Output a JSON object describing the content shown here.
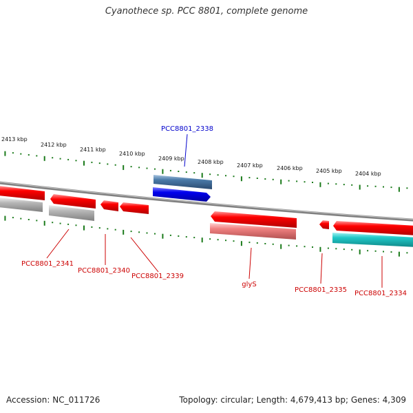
{
  "title": "Cyanothece sp. PCC 8801, complete genome",
  "footer": {
    "accession": "Accession: NC_011726",
    "topology": "Topology: circular; Length: 4,679,413 bp; Genes: 4,309"
  },
  "colors": {
    "backbone": "#808080",
    "tick": "#1a7a1a",
    "gene_red": "#ff0000",
    "gene_blue": "#0000ee",
    "gene_cyan": "#20c8c8",
    "gene_gray": "#b8b8b8",
    "gene_pink": "#f08080",
    "gene_steel": "#4a7aa8",
    "label_red": "#cc0000",
    "label_blue": "#0000cc"
  },
  "kbp_labels": [
    "2413 kbp",
    "2412 kbp",
    "2411 kbp",
    "2410 kbp",
    "2409 kbp",
    "2408 kbp",
    "2407 kbp",
    "2406 kbp",
    "2405 kbp",
    "2404 kbp"
  ],
  "gene_labels": [
    {
      "id": "pcc2338",
      "text": "PCC8801_2338",
      "color": "blue"
    },
    {
      "id": "pcc2341",
      "text": "PCC8801_2341",
      "color": "red"
    },
    {
      "id": "pcc2340",
      "text": "PCC8801_2340",
      "color": "red"
    },
    {
      "id": "pcc2339",
      "text": "PCC8801_2339",
      "color": "red"
    },
    {
      "id": "glys",
      "text": "glyS",
      "color": "red"
    },
    {
      "id": "pcc2335",
      "text": "PCC8801_2335",
      "color": "red"
    },
    {
      "id": "pcc2334",
      "text": "PCC8801_2334",
      "color": "red"
    }
  ]
}
